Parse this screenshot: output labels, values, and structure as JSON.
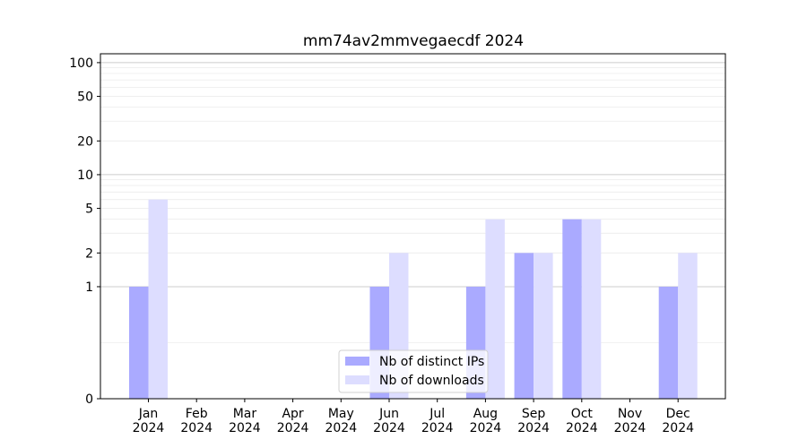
{
  "chart_data": {
    "type": "bar",
    "title": "mm74av2mmvegaecdf 2024",
    "xlabel": "",
    "ylabel": "",
    "categories": [
      "Jan\n2024",
      "Feb\n2024",
      "Mar\n2024",
      "Apr\n2024",
      "May\n2024",
      "Jun\n2024",
      "Jul\n2024",
      "Aug\n2024",
      "Sep\n2024",
      "Oct\n2024",
      "Nov\n2024",
      "Dec\n2024"
    ],
    "y_scale": "symlog",
    "ylim": [
      0,
      120
    ],
    "yticks": [
      0,
      1,
      2,
      5,
      10,
      20,
      50,
      100
    ],
    "grid": true,
    "legend_position": "lower-center",
    "series": [
      {
        "name": "Nb of distinct IPs",
        "color": "#aaaaff",
        "values": [
          1,
          0,
          0,
          0,
          0,
          1,
          0,
          1,
          2,
          4,
          0,
          1
        ]
      },
      {
        "name": "Nb of downloads",
        "color": "#ddddff",
        "values": [
          6,
          0,
          0,
          0,
          0,
          2,
          0,
          4,
          2,
          4,
          0,
          2
        ]
      }
    ]
  }
}
